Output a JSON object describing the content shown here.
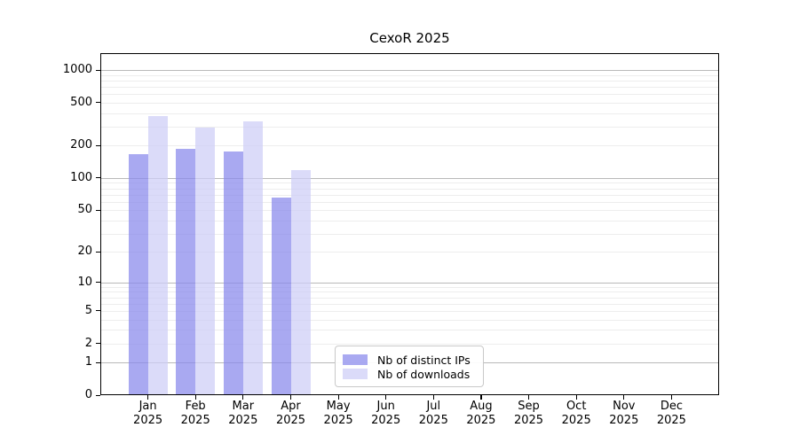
{
  "chart_data": {
    "type": "bar",
    "title": "CexoR 2025",
    "categories": [
      "Jan",
      "Feb",
      "Mar",
      "Apr",
      "May",
      "Jun",
      "Jul",
      "Aug",
      "Sep",
      "Oct",
      "Nov",
      "Dec"
    ],
    "year_label": "2025",
    "series": [
      {
        "name": "Nb of distinct IPs",
        "color": "#8888ec",
        "values": [
          168,
          188,
          176,
          66,
          0,
          0,
          0,
          0,
          0,
          0,
          0,
          0
        ]
      },
      {
        "name": "Nb of downloads",
        "color": "#cdcdf7",
        "values": [
          375,
          294,
          333,
          118,
          0,
          0,
          0,
          0,
          0,
          0,
          0,
          0
        ]
      }
    ],
    "y_axis": {
      "scale": "log10(1+x)",
      "ticks": [
        0,
        1,
        2,
        5,
        10,
        20,
        50,
        100,
        200,
        500,
        1000
      ],
      "major_gridlines": [
        1,
        10,
        100,
        1000
      ],
      "ylim": [
        0,
        1459
      ]
    },
    "x_axis": {
      "tick_count": 12
    },
    "legend_position": "bottom-center-inside",
    "grid": true,
    "colors": {
      "major_grid": "#b9b9b9",
      "minor_grid": "#ededed",
      "axis": "#000000",
      "background": "#ffffff"
    }
  }
}
